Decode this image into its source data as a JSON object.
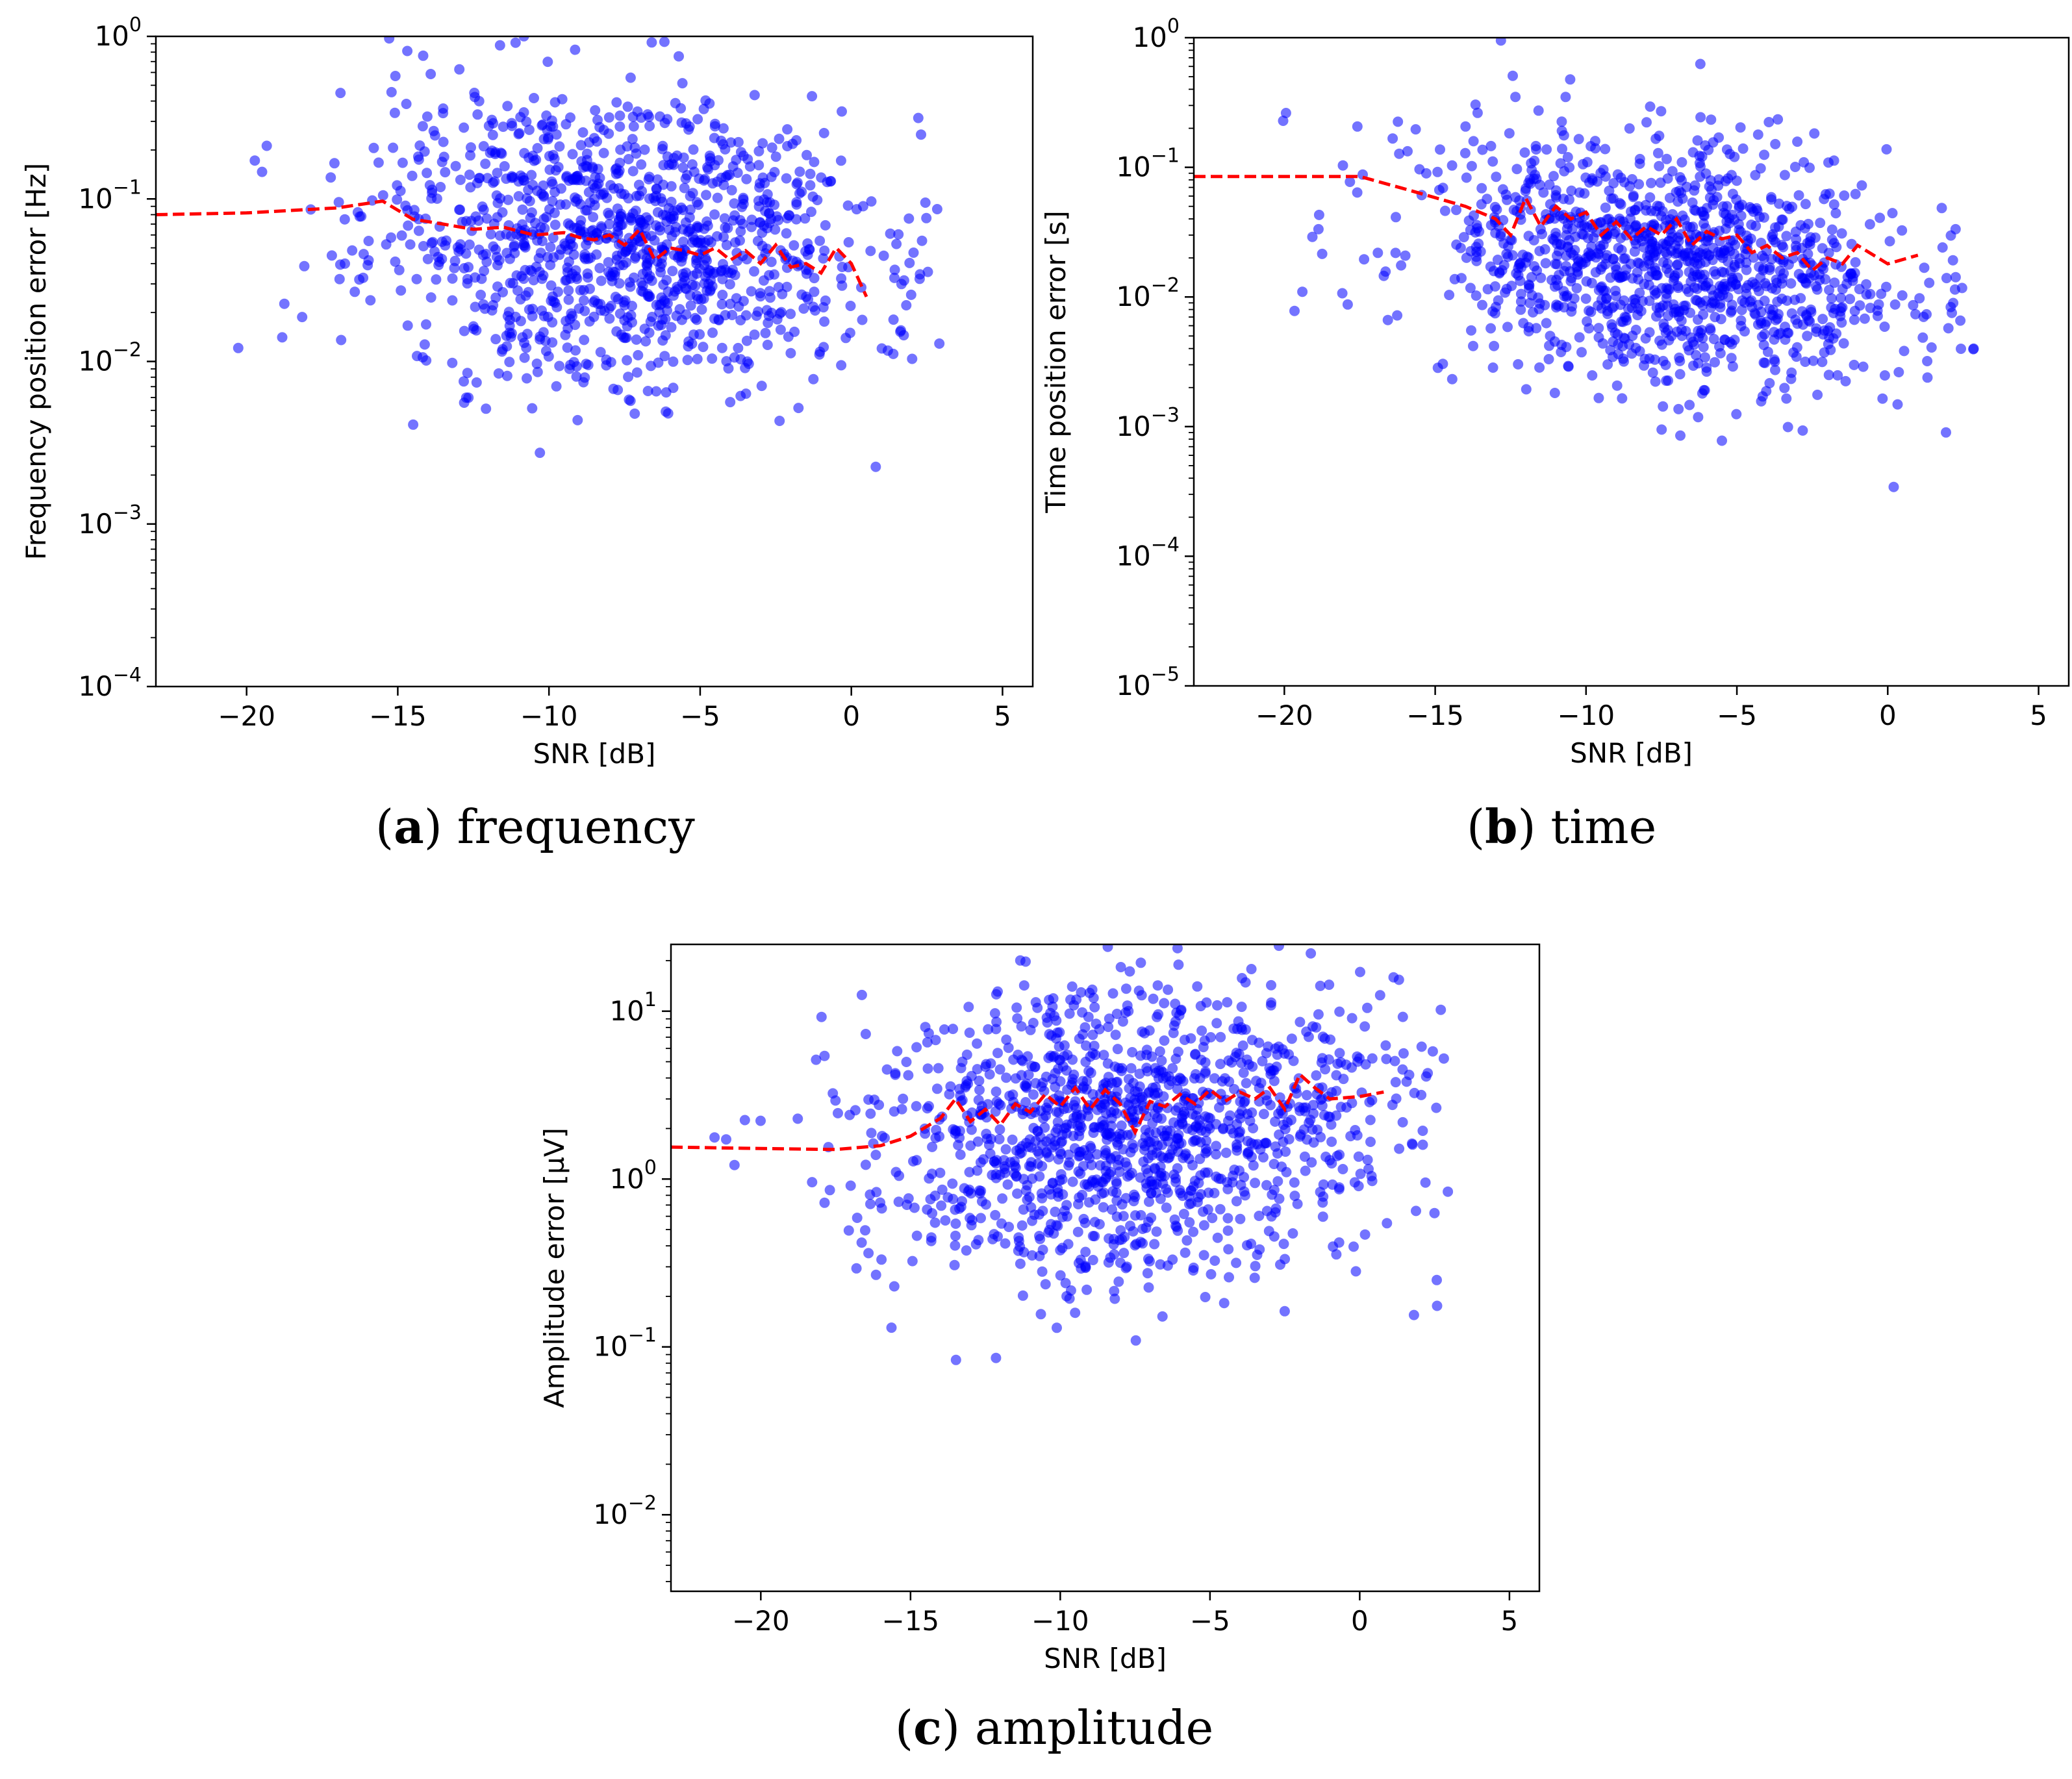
{
  "chart_data": [
    {
      "id": "a",
      "type": "scatter",
      "caption_letter": "a",
      "caption_text": " frequency",
      "xlabel": "SNR [dB]",
      "ylabel": "Frequency position error [Hz]",
      "xscale": "linear",
      "yscale": "log",
      "xlim": [
        -23,
        6
      ],
      "ylim": [
        0.0001,
        1
      ],
      "xticks": [
        -20,
        -15,
        -10,
        -5,
        0,
        5
      ],
      "xtick_labels": [
        "−20",
        "−15",
        "−10",
        "−5",
        "0",
        "5"
      ],
      "yticks": [
        -4,
        -3,
        -2,
        -1,
        0
      ],
      "point_color": "#0000ff",
      "line_color": "#ff0000",
      "series": [
        {
          "name": "samples",
          "kind": "scatter",
          "approximate": true,
          "n": 1200,
          "center_snr": -7.5,
          "spread_snr": 4.2,
          "seed": 11,
          "log_center": -1.25,
          "log_spread": 0.45,
          "snr_slope": -0.015
        },
        {
          "name": "trend",
          "kind": "line",
          "style": "dashed",
          "x": [
            -23,
            -20,
            -17,
            -15.5,
            -14.5,
            -13.5,
            -12.5,
            -11.5,
            -10.5,
            -9.5,
            -9,
            -8.5,
            -8,
            -7.5,
            -7,
            -6.5,
            -6,
            -5.5,
            -5,
            -4.5,
            -4,
            -3.5,
            -3,
            -2.5,
            -2,
            -1.5,
            -1,
            -0.5,
            0,
            0.5
          ],
          "y": [
            0.08,
            0.082,
            0.088,
            0.097,
            0.075,
            0.07,
            0.065,
            0.067,
            0.06,
            0.062,
            0.058,
            0.056,
            0.06,
            0.052,
            0.065,
            0.042,
            0.05,
            0.048,
            0.045,
            0.05,
            0.042,
            0.048,
            0.04,
            0.052,
            0.038,
            0.04,
            0.035,
            0.05,
            0.04,
            0.025
          ]
        }
      ]
    },
    {
      "id": "b",
      "type": "scatter",
      "caption_letter": "b",
      "caption_text": " time",
      "xlabel": "SNR [dB]",
      "ylabel": "Time position error [s]",
      "xscale": "linear",
      "yscale": "log",
      "xlim": [
        -23,
        6
      ],
      "ylim": [
        1e-05,
        1
      ],
      "xticks": [
        -20,
        -15,
        -10,
        -5,
        0,
        5
      ],
      "xtick_labels": [
        "−20",
        "−15",
        "−10",
        "−5",
        "0",
        "5"
      ],
      "yticks": [
        -5,
        -4,
        -3,
        -2,
        -1,
        0
      ],
      "point_color": "#0000ff",
      "line_color": "#ff0000",
      "series": [
        {
          "name": "samples",
          "kind": "scatter",
          "approximate": true,
          "n": 1200,
          "center_snr": -7.5,
          "spread_snr": 4.2,
          "seed": 23,
          "log_center": -1.7,
          "log_spread": 0.45,
          "snr_slope": -0.03
        },
        {
          "name": "trend",
          "kind": "line",
          "style": "dashed",
          "x": [
            -23,
            -20,
            -17.5,
            -16,
            -14,
            -13,
            -12.5,
            -12,
            -11.5,
            -11,
            -10.5,
            -10,
            -9.5,
            -9,
            -8.5,
            -8,
            -7.5,
            -7,
            -6.5,
            -6,
            -5.5,
            -5,
            -4.5,
            -4,
            -3.5,
            -3,
            -2.5,
            -2,
            -1.5,
            -1,
            0,
            1
          ],
          "y": [
            0.085,
            0.085,
            0.085,
            0.068,
            0.05,
            0.04,
            0.03,
            0.058,
            0.035,
            0.05,
            0.04,
            0.045,
            0.03,
            0.038,
            0.028,
            0.035,
            0.03,
            0.04,
            0.025,
            0.032,
            0.028,
            0.03,
            0.022,
            0.025,
            0.02,
            0.022,
            0.016,
            0.02,
            0.018,
            0.025,
            0.018,
            0.021
          ]
        }
      ]
    },
    {
      "id": "c",
      "type": "scatter",
      "caption_letter": "c",
      "caption_text": " amplitude",
      "xlabel": "SNR [dB]",
      "ylabel": "Amplitude error [µV]",
      "xscale": "linear",
      "yscale": "log",
      "xlim": [
        -23,
        6
      ],
      "ylim": [
        0.0035,
        25
      ],
      "xticks": [
        -20,
        -15,
        -10,
        -5,
        0,
        5
      ],
      "xtick_labels": [
        "−20",
        "−15",
        "−10",
        "−5",
        "0",
        "5"
      ],
      "yticks": [
        -2,
        -1,
        0,
        1
      ],
      "point_color": "#0000ff",
      "line_color": "#ff0000",
      "series": [
        {
          "name": "samples",
          "kind": "scatter",
          "approximate": true,
          "n": 1300,
          "center_snr": -7.5,
          "spread_snr": 4.2,
          "seed": 37,
          "log_center": 0.3,
          "log_spread": 0.45,
          "snr_slope": 0.01
        },
        {
          "name": "trend",
          "kind": "line",
          "style": "dashed",
          "x": [
            -23,
            -20,
            -17.5,
            -16,
            -15,
            -14,
            -13.5,
            -13,
            -12.5,
            -12,
            -11.5,
            -11,
            -10.5,
            -10,
            -9.5,
            -9,
            -8.5,
            -8,
            -7.5,
            -7,
            -6.5,
            -6,
            -5.5,
            -5,
            -4.5,
            -4,
            -3.5,
            -3,
            -2.5,
            -2,
            -1.5,
            -1,
            0,
            0.8
          ],
          "y": [
            1.55,
            1.52,
            1.5,
            1.58,
            1.8,
            2.3,
            3.0,
            2.2,
            2.6,
            2.1,
            2.8,
            2.5,
            3.2,
            2.7,
            3.5,
            2.6,
            3.4,
            2.8,
            1.9,
            2.9,
            2.7,
            3.2,
            2.8,
            3.4,
            2.9,
            3.3,
            3.0,
            3.5,
            2.6,
            4.2,
            3.5,
            3.0,
            3.1,
            3.3
          ]
        }
      ]
    }
  ]
}
